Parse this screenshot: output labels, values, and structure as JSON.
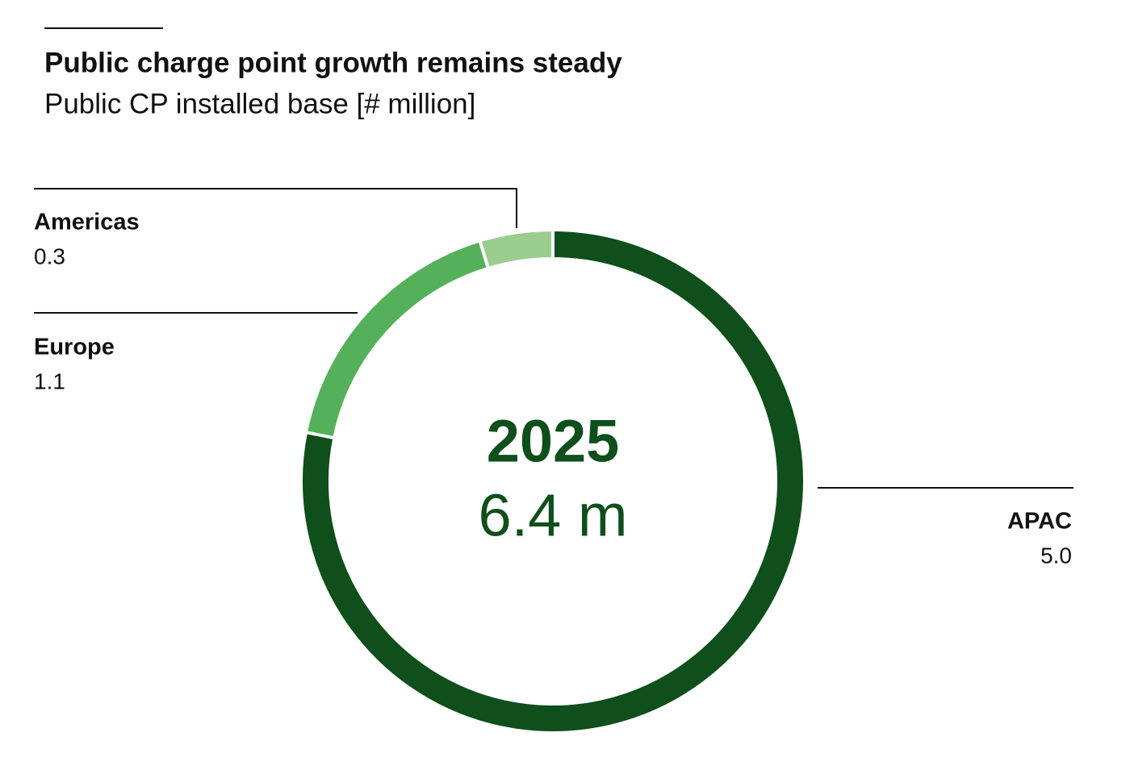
{
  "chart_data": {
    "type": "donut",
    "title": "Public charge point growth remains steady",
    "subtitle": "Public CP installed base [# million]",
    "center_label": "2025",
    "center_value": "6.4 m",
    "categories": [
      "APAC",
      "Europe",
      "Americas"
    ],
    "values": [
      5.0,
      1.1,
      0.3
    ],
    "value_labels": [
      "5.0",
      "1.1",
      "0.3"
    ],
    "colors": [
      "#0e4f1b",
      "#55b05a",
      "#9bcd8f"
    ]
  }
}
